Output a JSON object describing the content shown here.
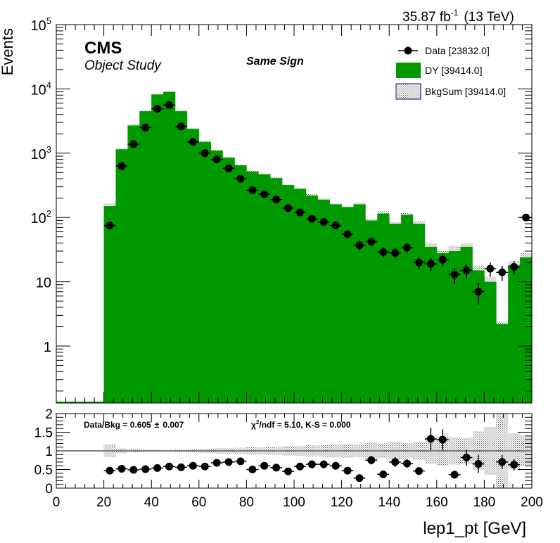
{
  "header": {
    "lumi": "35.87 fb",
    "lumi_exp": "-1",
    "energy": "(13 TeV)"
  },
  "labels": {
    "experiment": "CMS",
    "subtitle": "Object Study",
    "region": "Same Sign",
    "ratio_stats": "Data/Bkg = 0.605",
    "ratio_pm": "±",
    "ratio_err": "0.007",
    "chi2_prefix": "χ",
    "chi2_exp": "2",
    "chi2_rest": "/ndf = 5.10,   K-S = 0.000"
  },
  "legend": [
    {
      "key": "data",
      "label": "Data [23832.0]"
    },
    {
      "key": "dy",
      "label": "DY [39414.0]"
    },
    {
      "key": "bkg",
      "label": "BkgSum [39414.0]"
    }
  ],
  "colors": {
    "dy": "#009900",
    "data": "#000000",
    "hatch": "#555555"
  },
  "chart_data": {
    "type": "bar",
    "xlabel": "lep1_pt [GeV]",
    "ylabel": "Events",
    "xlim": [
      0,
      200
    ],
    "ylim": [
      0.13,
      100000
    ],
    "yscale": "log",
    "x_ticks": [
      "0",
      "20",
      "40",
      "60",
      "80",
      "100",
      "120",
      "140",
      "160",
      "180",
      "200"
    ],
    "y_ticks": [
      {
        "v": 1,
        "base": "1",
        "exp": ""
      },
      {
        "v": 10,
        "base": "10",
        "exp": ""
      },
      {
        "v": 100,
        "base": "10",
        "exp": "2"
      },
      {
        "v": 1000,
        "base": "10",
        "exp": "3"
      },
      {
        "v": 10000,
        "base": "10",
        "exp": "4"
      },
      {
        "v": 100000,
        "base": "10",
        "exp": "5"
      }
    ],
    "bin_width": 5,
    "bin_lo": [
      0,
      5,
      10,
      15,
      20,
      25,
      30,
      35,
      40,
      45,
      50,
      55,
      60,
      65,
      70,
      75,
      80,
      85,
      90,
      95,
      100,
      105,
      110,
      115,
      120,
      125,
      130,
      135,
      140,
      145,
      150,
      155,
      160,
      165,
      170,
      175,
      180,
      185,
      190,
      195
    ],
    "series": [
      {
        "name": "DY",
        "values": [
          0,
          0,
          0,
          0,
          150,
          1150,
          2700,
          4500,
          8200,
          9000,
          4500,
          2400,
          1500,
          1100,
          850,
          650,
          520,
          470,
          410,
          320,
          280,
          220,
          190,
          160,
          145,
          160,
          90,
          115,
          80,
          110,
          80,
          35,
          28,
          30,
          35,
          15,
          10,
          2.2,
          18,
          24
        ]
      },
      {
        "name": "BkgSum",
        "values": [
          0,
          0,
          0,
          0,
          165,
          1200,
          2800,
          4600,
          8400,
          9200,
          4600,
          2450,
          1550,
          1120,
          870,
          660,
          540,
          480,
          420,
          330,
          285,
          230,
          195,
          165,
          150,
          170,
          95,
          125,
          85,
          118,
          88,
          40,
          30,
          36,
          40,
          18,
          12,
          2.4,
          21,
          28
        ]
      },
      {
        "name": "Data",
        "x": [
          22.5,
          27.5,
          32.5,
          37.5,
          42.5,
          47.5,
          52.5,
          57.5,
          62.5,
          67.5,
          72.5,
          77.5,
          82.5,
          87.5,
          92.5,
          97.5,
          102.5,
          107.5,
          112.5,
          117.5,
          122.5,
          127.5,
          132.5,
          137.5,
          142.5,
          147.5,
          152.5,
          157.5,
          162.5,
          167.5,
          172.5,
          177.5,
          182.5,
          187.5,
          192.5,
          197.5
        ],
        "values": [
          75,
          630,
          1380,
          2500,
          4900,
          5600,
          2600,
          1500,
          1000,
          800,
          580,
          400,
          265,
          230,
          190,
          140,
          120,
          95,
          85,
          75,
          55,
          37,
          42,
          29,
          28,
          34,
          20,
          19,
          22,
          13,
          15,
          7,
          16,
          14,
          17,
          100
        ]
      }
    ],
    "ratio": {
      "ylabel": "",
      "ylim": [
        0,
        2
      ],
      "y_ticks": [
        "0",
        "0.5",
        "1",
        "1.5",
        "2"
      ],
      "x": [
        22.5,
        27.5,
        32.5,
        37.5,
        42.5,
        47.5,
        52.5,
        57.5,
        62.5,
        67.5,
        72.5,
        77.5,
        82.5,
        87.5,
        92.5,
        97.5,
        102.5,
        107.5,
        112.5,
        117.5,
        122.5,
        127.5,
        132.5,
        137.5,
        142.5,
        147.5,
        152.5,
        157.5,
        162.5,
        167.5,
        172.5,
        177.5,
        187.5,
        192.5
      ],
      "values": [
        0.47,
        0.52,
        0.49,
        0.51,
        0.54,
        0.58,
        0.56,
        0.6,
        0.58,
        0.68,
        0.7,
        0.72,
        0.5,
        0.6,
        0.55,
        0.45,
        0.58,
        0.64,
        0.64,
        0.6,
        0.47,
        0.27,
        0.75,
        0.37,
        0.7,
        0.66,
        0.46,
        1.32,
        1.3,
        0.36,
        0.82,
        0.65,
        0.7,
        0.63
      ]
    }
  }
}
